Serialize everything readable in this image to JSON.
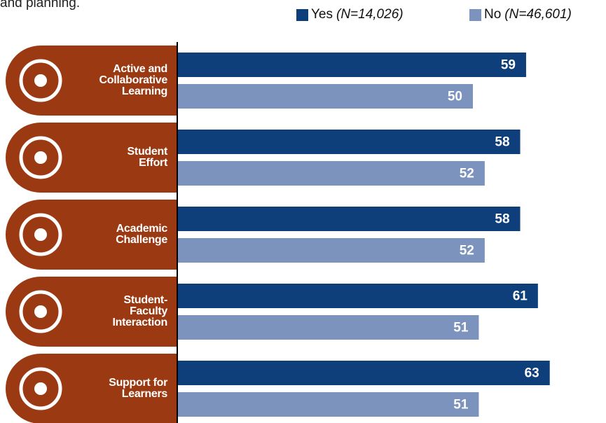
{
  "note": "and planning.",
  "chart_data": {
    "type": "hbar",
    "categories": [
      "Active and\nCollaborative\nLearning",
      "Student\nEffort",
      "Academic\nChallenge",
      "Student-\nFaculty\nInteraction",
      "Support for\nLearners"
    ],
    "series": [
      {
        "name": "Yes",
        "n_label": "(N=14,026)",
        "color": "#0e3f7a",
        "values": [
          59,
          58,
          58,
          61,
          63
        ]
      },
      {
        "name": "No",
        "n_label": "(N=46,601)",
        "color": "#7b93bd",
        "values": [
          50,
          52,
          52,
          51,
          51
        ]
      }
    ],
    "icon_color": "#9b3a12"
  }
}
